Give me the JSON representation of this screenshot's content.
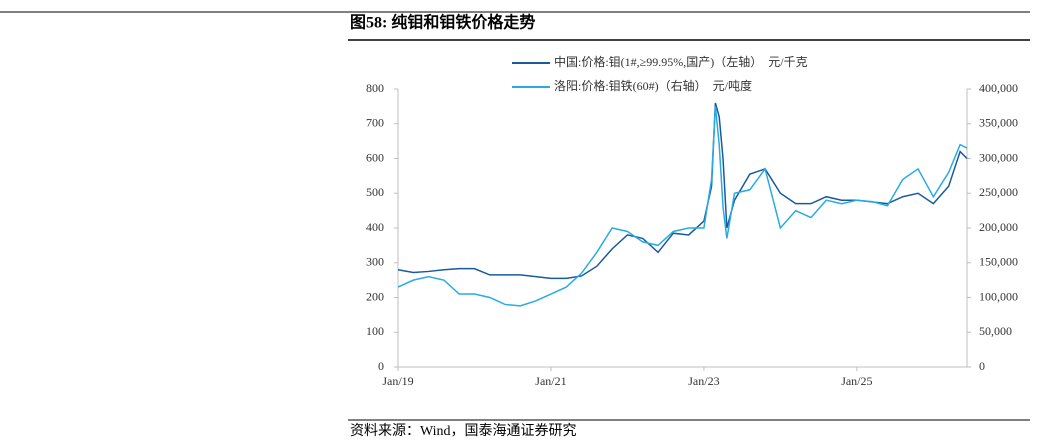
{
  "chart_data": {
    "type": "line",
    "title": "图58:  纯钼和钼铁价格走势",
    "source": "资料来源：Wind，国泰海通证券研究",
    "x": [
      2019,
      2019.2,
      2019.4,
      2019.6,
      2019.8,
      2020,
      2020.2,
      2020.4,
      2020.6,
      2020.8,
      2021,
      2021.2,
      2021.4,
      2021.6,
      2021.8,
      2022,
      2022.2,
      2022.4,
      2022.6,
      2022.8,
      2023,
      2023.1,
      2023.15,
      2023.2,
      2023.25,
      2023.3,
      2023.4,
      2023.6,
      2023.8,
      2024,
      2024.2,
      2024.4,
      2024.6,
      2024.8,
      2025,
      2025.2,
      2025.4,
      2025.6,
      2025.8,
      2026,
      2026.2,
      2026.35,
      2026.44
    ],
    "xlim": [
      2019,
      2026.44
    ],
    "xticks": [
      {
        "value": 2019,
        "label": "Jan/19"
      },
      {
        "value": 2021,
        "label": "Jan/21"
      },
      {
        "value": 2023,
        "label": "Jan/23"
      },
      {
        "value": 2025,
        "label": "Jan/25"
      }
    ],
    "ylim": [
      0,
      800
    ],
    "yticks": [
      0,
      100,
      200,
      300,
      400,
      500,
      600,
      700,
      800
    ],
    "y2lim": [
      0,
      400000
    ],
    "y2ticks": [
      0,
      {
        "value": 50000,
        "label": "50,000"
      },
      {
        "value": 100000,
        "label": "100,000"
      },
      {
        "value": 150000,
        "label": "150,000"
      },
      {
        "value": 200000,
        "label": "200,000"
      },
      {
        "value": 250000,
        "label": "250,000"
      },
      {
        "value": 300000,
        "label": "300,000"
      },
      {
        "value": 350000,
        "label": "350,000"
      },
      {
        "value": 400000,
        "label": "400,000"
      }
    ],
    "grid": false,
    "series": [
      {
        "name": "中国:价格:钼(1#,≥99.95%,国产)（左轴）　元/千克",
        "color": "#1a5a9c",
        "values": [
          280,
          272,
          275,
          280,
          283,
          283,
          265,
          265,
          265,
          260,
          255,
          255,
          262,
          290,
          340,
          380,
          370,
          330,
          385,
          380,
          420,
          520,
          760,
          720,
          600,
          400,
          480,
          555,
          570,
          500,
          470,
          470,
          490,
          480,
          480,
          475,
          470,
          490,
          500,
          470,
          520,
          620,
          600
        ]
      },
      {
        "name": "洛阳:价格:钼铁(60#)（右轴）　元/吨度",
        "color": "#29abe2",
        "axis": "y2",
        "values": [
          115000,
          125000,
          130000,
          125000,
          105000,
          105000,
          100000,
          90000,
          88000,
          95000,
          105000,
          115000,
          135000,
          165000,
          200000,
          195000,
          180000,
          175000,
          195000,
          200000,
          200000,
          270000,
          375000,
          320000,
          230000,
          185000,
          250000,
          255000,
          285000,
          200000,
          225000,
          215000,
          240000,
          235000,
          240000,
          238000,
          232000,
          270000,
          285000,
          245000,
          280000,
          320000,
          315000
        ]
      }
    ]
  }
}
